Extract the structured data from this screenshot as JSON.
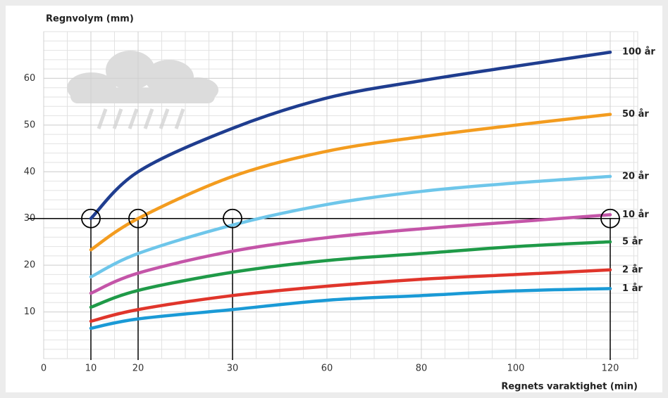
{
  "chart_data": {
    "type": "line",
    "y_label": "Regnvolym (mm)",
    "x_label": "Regnets varaktighet (min)",
    "x": [
      10,
      20,
      30,
      60,
      80,
      100,
      120
    ],
    "xlim": [
      0,
      120
    ],
    "xticks": [
      0,
      10,
      20,
      30,
      60,
      80,
      100,
      120
    ],
    "ylim": [
      0,
      70
    ],
    "yticks": [
      10,
      20,
      30,
      40,
      50,
      60
    ],
    "grid": true,
    "reference_y": 30,
    "reference_x": [
      10,
      20,
      30,
      120
    ],
    "series": [
      {
        "name": "100 år",
        "color": "#1f3d8f",
        "values": [
          30,
          40,
          49.3,
          55.8,
          59.5,
          62.6,
          65.6
        ]
      },
      {
        "name": "50 år",
        "color": "#f39c1f",
        "values": [
          23.3,
          30,
          39,
          44.4,
          47.5,
          50,
          52.3
        ]
      },
      {
        "name": "20 år",
        "color": "#6ec6ea",
        "values": [
          17.5,
          22.5,
          28.6,
          33,
          35.8,
          37.6,
          39
        ]
      },
      {
        "name": "10 år",
        "color": "#c455a8",
        "values": [
          14,
          18.3,
          23,
          25.9,
          27.8,
          29.3,
          30.8
        ]
      },
      {
        "name": "5 år",
        "color": "#1f9a48",
        "values": [
          11,
          14.6,
          18.5,
          21,
          22.5,
          24,
          25
        ]
      },
      {
        "name": "2 år",
        "color": "#e0352b",
        "values": [
          8,
          10.5,
          13.5,
          15.5,
          17,
          18,
          19
        ]
      },
      {
        "name": "1 år",
        "color": "#1a9ad6",
        "values": [
          6.5,
          8.5,
          10.5,
          12.5,
          13.5,
          14.5,
          15
        ]
      }
    ]
  }
}
